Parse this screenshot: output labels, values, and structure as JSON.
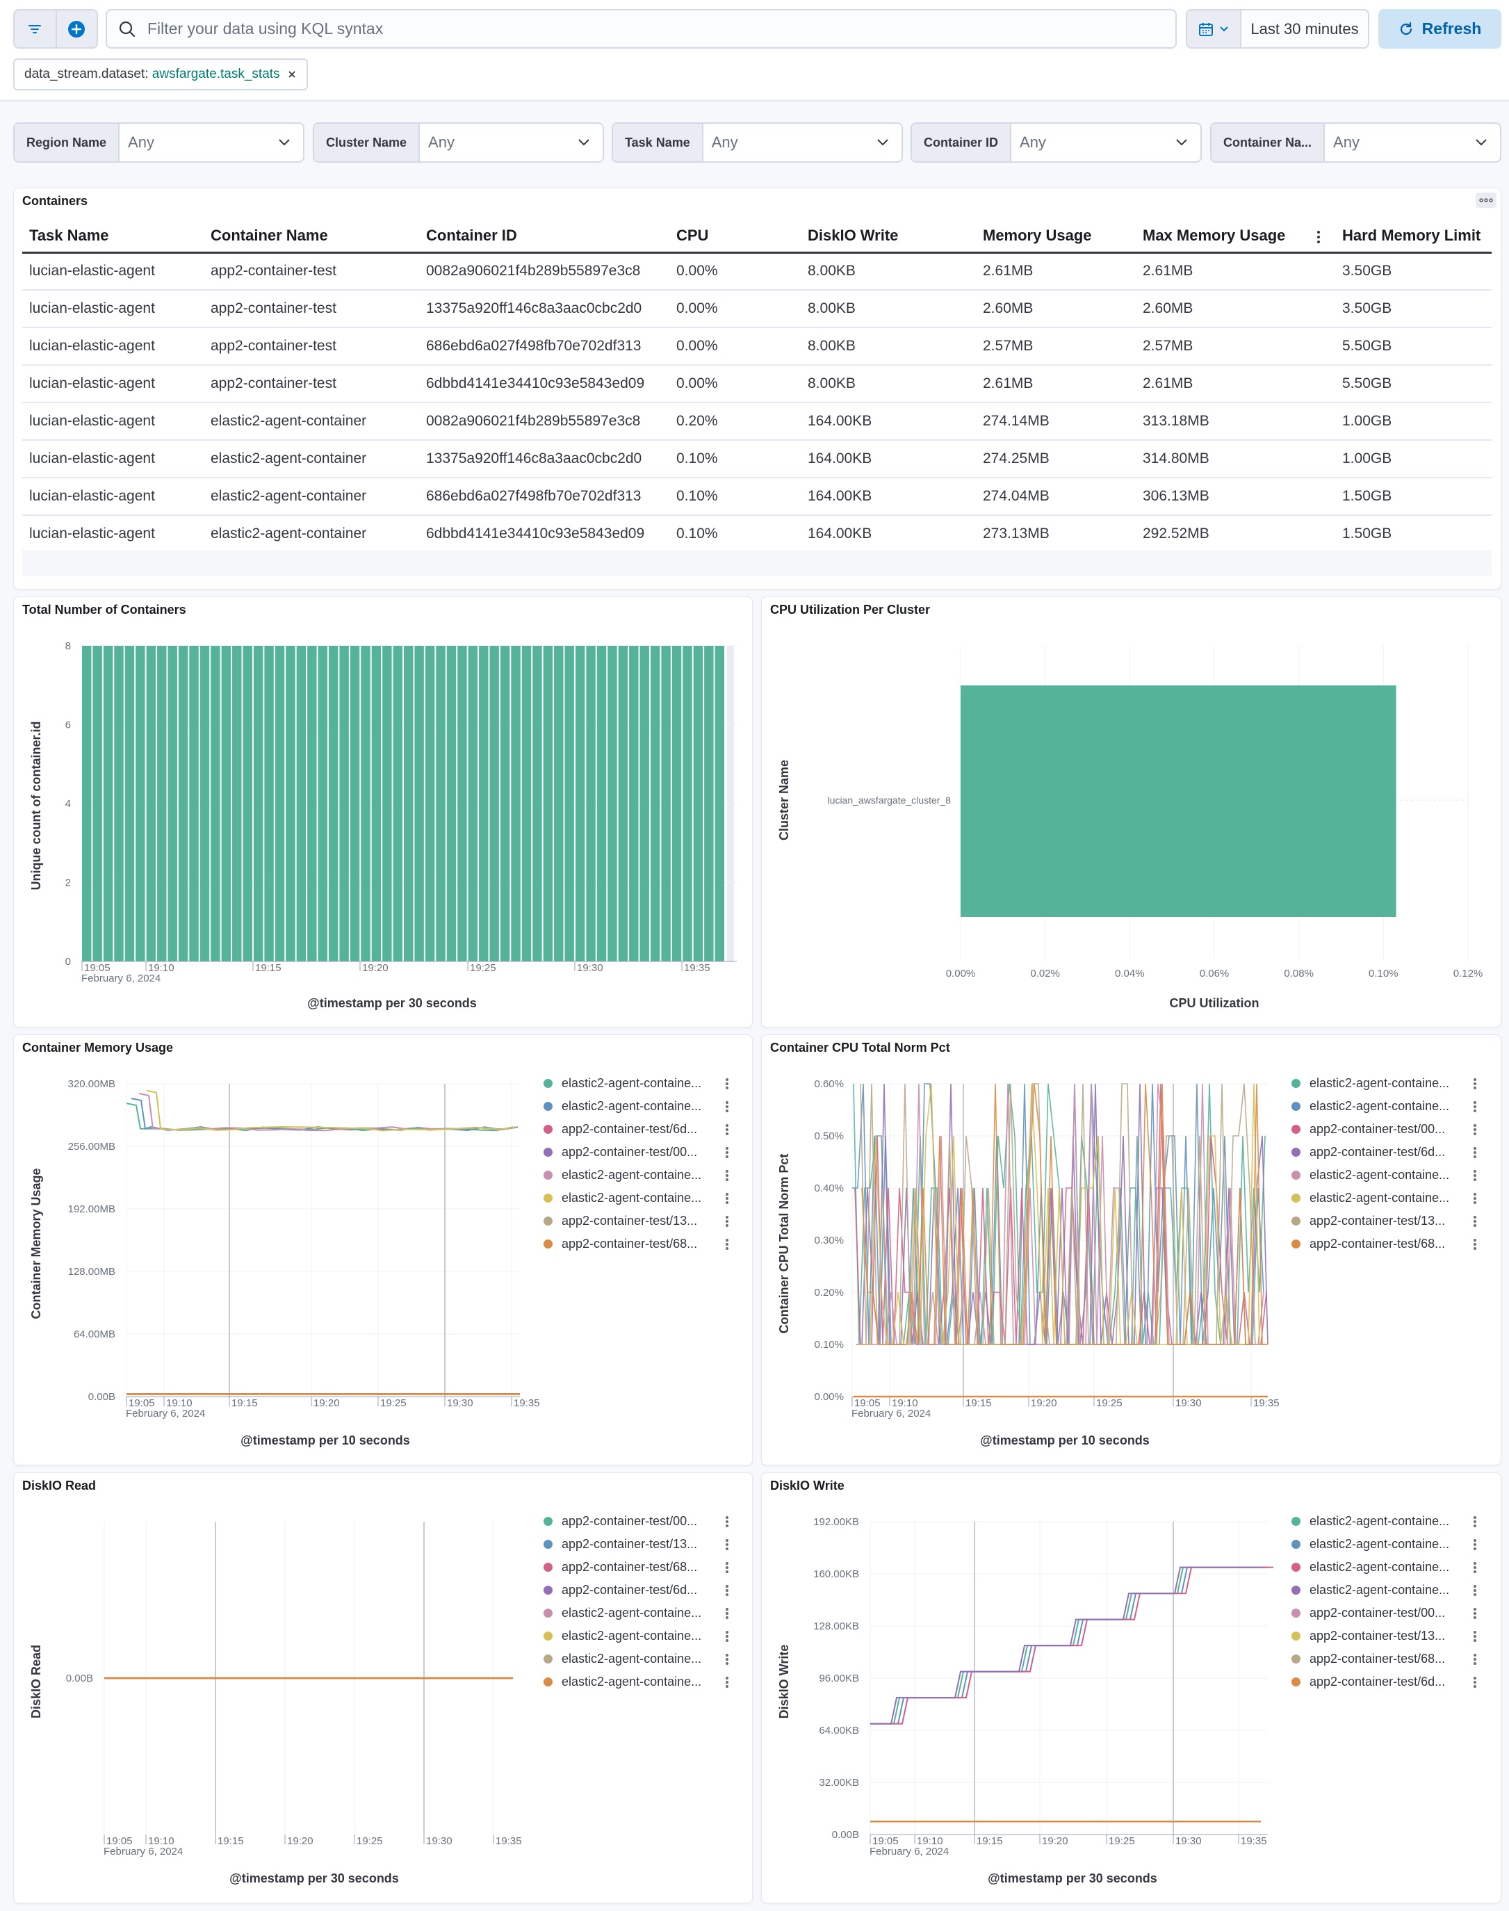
{
  "query": {
    "placeholder": "Filter your data using KQL syntax",
    "time_range": "Last 30 minutes",
    "refresh_label": "Refresh"
  },
  "filter_pill": {
    "key": "data_stream.dataset:",
    "value": "awsfargate.task_stats"
  },
  "controls": [
    {
      "label": "Region Name",
      "value": "Any"
    },
    {
      "label": "Cluster Name",
      "value": "Any"
    },
    {
      "label": "Task Name",
      "value": "Any"
    },
    {
      "label": "Container ID",
      "value": "Any"
    },
    {
      "label": "Container Na...",
      "value": "Any"
    }
  ],
  "containers_table": {
    "title": "Containers",
    "columns": [
      "Task Name",
      "Container Name",
      "Container ID",
      "CPU",
      "DiskIO Write",
      "Memory Usage",
      "Max Memory Usage",
      "Hard Memory Limit"
    ],
    "rows": [
      [
        "lucian-elastic-agent",
        "app2-container-test",
        "0082a906021f4b289b55897e3c8",
        "0.00%",
        "8.00KB",
        "2.61MB",
        "2.61MB",
        "3.50GB"
      ],
      [
        "lucian-elastic-agent",
        "app2-container-test",
        "13375a920ff146c8a3aac0cbc2d0",
        "0.00%",
        "8.00KB",
        "2.60MB",
        "2.60MB",
        "3.50GB"
      ],
      [
        "lucian-elastic-agent",
        "app2-container-test",
        "686ebd6a027f498fb70e702df313",
        "0.00%",
        "8.00KB",
        "2.57MB",
        "2.57MB",
        "5.50GB"
      ],
      [
        "lucian-elastic-agent",
        "app2-container-test",
        "6dbbd4141e34410c93e5843ed09",
        "0.00%",
        "8.00KB",
        "2.61MB",
        "2.61MB",
        "5.50GB"
      ],
      [
        "lucian-elastic-agent",
        "elastic2-agent-container",
        "0082a906021f4b289b55897e3c8",
        "0.20%",
        "164.00KB",
        "274.14MB",
        "313.18MB",
        "1.00GB"
      ],
      [
        "lucian-elastic-agent",
        "elastic2-agent-container",
        "13375a920ff146c8a3aac0cbc2d0",
        "0.10%",
        "164.00KB",
        "274.25MB",
        "314.80MB",
        "1.00GB"
      ],
      [
        "lucian-elastic-agent",
        "elastic2-agent-container",
        "686ebd6a027f498fb70e702df313",
        "0.10%",
        "164.00KB",
        "274.04MB",
        "306.13MB",
        "1.50GB"
      ],
      [
        "lucian-elastic-agent",
        "elastic2-agent-container",
        "6dbbd4141e34410c93e5843ed09",
        "0.10%",
        "164.00KB",
        "273.13MB",
        "292.52MB",
        "1.50GB"
      ]
    ]
  },
  "colors": {
    "accent": "#54b399",
    "series": [
      "#54b399",
      "#6092c0",
      "#d36086",
      "#9170b8",
      "#ca8eae",
      "#d6bf57",
      "#b9a888",
      "#da8b45"
    ]
  },
  "chart_data": [
    {
      "type": "bar",
      "title": "Total Number of Containers",
      "xlabel": "@timestamp per 30 seconds",
      "ylabel": "Unique count of container.id",
      "yticks": [
        "0",
        "2",
        "4",
        "6",
        "8"
      ],
      "ylim": [
        0,
        8
      ],
      "xticks": [
        "19:05",
        "19:10",
        "19:15",
        "19:20",
        "19:25",
        "19:30",
        "19:35"
      ],
      "xdate": "February 6, 2024",
      "bar_count": 60,
      "value_each": 8
    },
    {
      "type": "bar",
      "orientation": "horizontal",
      "title": "CPU Utilization Per Cluster",
      "xlabel": "CPU Utilization",
      "ylabel": "Cluster Name",
      "categories": [
        "lucian_awsfargate_cluster_8"
      ],
      "values": [
        0.103
      ],
      "xticks": [
        "0.00%",
        "0.02%",
        "0.04%",
        "0.06%",
        "0.08%",
        "0.10%",
        "0.12%"
      ],
      "xlim": [
        0,
        0.12
      ]
    },
    {
      "type": "line",
      "title": "Container Memory Usage",
      "xlabel": "@timestamp per 10 seconds",
      "ylabel": "Container Memory Usage",
      "yticks": [
        "0.00B",
        "64.00MB",
        "128.00MB",
        "192.00MB",
        "256.00MB",
        "320.00MB"
      ],
      "ylim": [
        0,
        320
      ],
      "xticks": [
        "19:05",
        "19:10",
        "19:15",
        "19:20",
        "19:25",
        "19:30",
        "19:35"
      ],
      "xdate": "February 6, 2024",
      "legend": [
        "elastic2-agent-containe...",
        "elastic2-agent-containe...",
        "app2-container-test/6d...",
        "app2-container-test/00...",
        "elastic2-agent-containe...",
        "elastic2-agent-containe...",
        "app2-container-test/13...",
        "app2-container-test/68..."
      ]
    },
    {
      "type": "line",
      "title": "Container CPU Total Norm Pct",
      "xlabel": "@timestamp per 10 seconds",
      "ylabel": "Container CPU Total Norm Pct",
      "yticks": [
        "0.00%",
        "0.10%",
        "0.20%",
        "0.30%",
        "0.40%",
        "0.50%",
        "0.60%"
      ],
      "ylim": [
        0,
        0.6
      ],
      "xticks": [
        "19:05",
        "19:10",
        "19:15",
        "19:20",
        "19:25",
        "19:30",
        "19:35"
      ],
      "xdate": "February 6, 2024",
      "legend": [
        "elastic2-agent-containe...",
        "elastic2-agent-containe...",
        "app2-container-test/00...",
        "app2-container-test/6d...",
        "elastic2-agent-containe...",
        "elastic2-agent-containe...",
        "app2-container-test/13...",
        "app2-container-test/68..."
      ]
    },
    {
      "type": "line",
      "title": "DiskIO Read",
      "xlabel": "@timestamp per 30 seconds",
      "ylabel": "DiskIO Read",
      "yticks": [
        "0.00B"
      ],
      "xticks": [
        "19:05",
        "19:10",
        "19:15",
        "19:20",
        "19:25",
        "19:30",
        "19:35"
      ],
      "xdate": "February 6, 2024",
      "legend": [
        "app2-container-test/00...",
        "app2-container-test/13...",
        "app2-container-test/68...",
        "app2-container-test/6d...",
        "elastic2-agent-containe...",
        "elastic2-agent-containe...",
        "elastic2-agent-containe...",
        "elastic2-agent-containe..."
      ]
    },
    {
      "type": "line",
      "title": "DiskIO Write",
      "xlabel": "@timestamp per 30 seconds",
      "ylabel": "DiskIO Write",
      "yticks": [
        "0.00B",
        "32.00KB",
        "64.00KB",
        "96.00KB",
        "128.00KB",
        "160.00KB",
        "192.00KB"
      ],
      "ylim": [
        0,
        192
      ],
      "xticks": [
        "19:05",
        "19:10",
        "19:15",
        "19:20",
        "19:25",
        "19:30",
        "19:35"
      ],
      "xdate": "February 6, 2024",
      "legend": [
        "elastic2-agent-containe...",
        "elastic2-agent-containe...",
        "elastic2-agent-containe...",
        "elastic2-agent-containe...",
        "app2-container-test/00...",
        "app2-container-test/13...",
        "app2-container-test/68...",
        "app2-container-test/6d..."
      ]
    }
  ]
}
